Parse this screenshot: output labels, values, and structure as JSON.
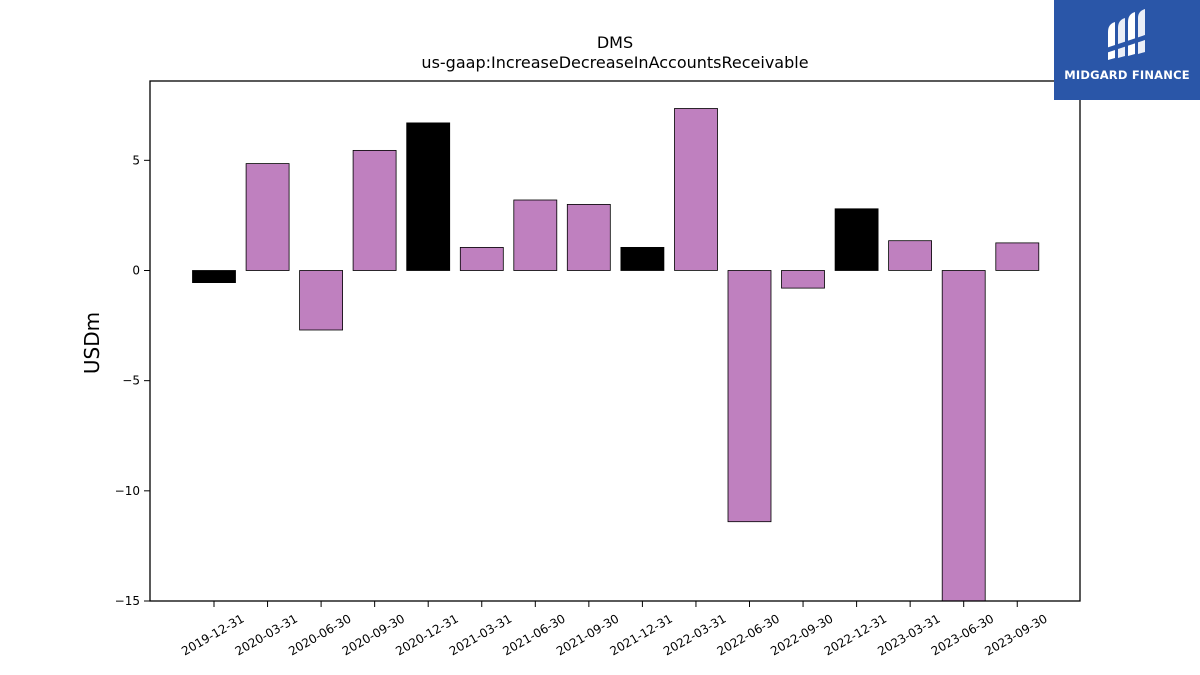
{
  "chart_data": {
    "type": "bar",
    "title": "DMS",
    "subtitle": "us-gaap:IncreaseDecreaseInAccountsReceivable",
    "xlabel": "",
    "ylabel": "USDm",
    "ylim": [
      -15,
      8.6
    ],
    "yticks": [
      5,
      0,
      -5,
      -10,
      -15
    ],
    "ytick_labels": [
      "5",
      "0",
      "−5",
      "−10",
      "−15"
    ],
    "grid": false,
    "categories": [
      "2019-12-31",
      "2020-03-31",
      "2020-06-30",
      "2020-09-30",
      "2020-12-31",
      "2021-03-31",
      "2021-06-30",
      "2021-09-30",
      "2021-12-31",
      "2022-03-31",
      "2022-06-30",
      "2022-09-30",
      "2022-12-31",
      "2023-03-31",
      "2023-06-30",
      "2023-09-30"
    ],
    "values": [
      -0.55,
      4.85,
      -2.7,
      5.45,
      6.7,
      1.05,
      3.2,
      3.0,
      1.05,
      7.35,
      -11.4,
      -0.8,
      2.8,
      1.35,
      -15.0,
      1.25
    ],
    "bar_colors": [
      "#000000",
      "#bf80bf",
      "#bf80bf",
      "#bf80bf",
      "#000000",
      "#bf80bf",
      "#bf80bf",
      "#bf80bf",
      "#000000",
      "#bf80bf",
      "#bf80bf",
      "#bf80bf",
      "#000000",
      "#bf80bf",
      "#bf80bf",
      "#bf80bf"
    ]
  },
  "logo": {
    "text": "MIDGARD FINANCE",
    "background": "#2a56a8",
    "icon": "midgard-logo-mark"
  }
}
